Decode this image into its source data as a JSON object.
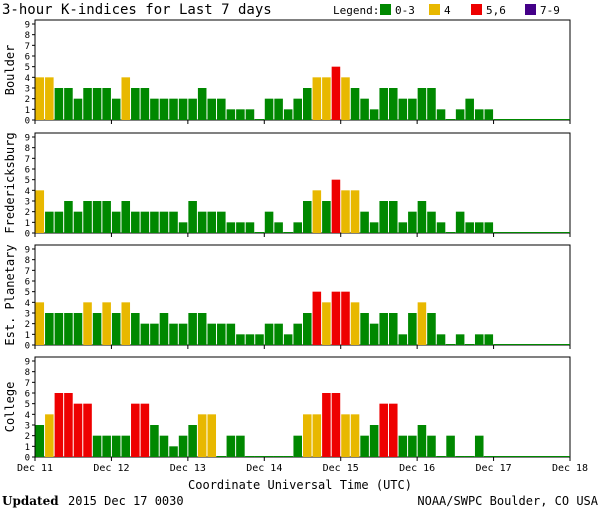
{
  "title": "3-hour K-indices for Last 7 days",
  "legend": {
    "label": "Legend:",
    "items": [
      {
        "label": "0-3",
        "color": "#008800"
      },
      {
        "label": "4",
        "color": "#e8b800"
      },
      {
        "label": "5,6",
        "color": "#ee0000"
      },
      {
        "label": "7-9",
        "color": "#440088"
      }
    ]
  },
  "footer": {
    "updated_label": "Updated",
    "updated_value": "2015 Dec 17 0030",
    "credit": "NOAA/SWPC Boulder, CO USA"
  },
  "chart_data": {
    "type": "bar",
    "xlabel": "Coordinate Universal Time (UTC)",
    "x_tick_labels": [
      "Dec 11",
      "Dec 12",
      "Dec 13",
      "Dec 14",
      "Dec 15",
      "Dec 16",
      "Dec 17",
      "Dec 18"
    ],
    "ylim": [
      0,
      9
    ],
    "y_ticks": [
      0,
      1,
      2,
      3,
      4,
      5,
      6,
      7,
      8,
      9
    ],
    "grid": false,
    "bins_per_day": 8,
    "color_thresholds": [
      {
        "range": "0-3",
        "color": "#008800"
      },
      {
        "range": "4",
        "color": "#e8b800"
      },
      {
        "range": "5,6",
        "color": "#ee0000"
      },
      {
        "range": "7-9",
        "color": "#440088"
      }
    ],
    "panels": [
      {
        "name": "Boulder",
        "values": [
          4,
          4,
          3,
          3,
          2,
          3,
          3,
          3,
          2,
          4,
          3,
          3,
          2,
          2,
          2,
          2,
          2,
          3,
          2,
          2,
          1,
          1,
          1,
          0,
          2,
          2,
          1,
          2,
          3,
          4,
          4,
          5,
          4,
          3,
          2,
          1,
          3,
          3,
          2,
          2,
          3,
          3,
          1,
          0,
          1,
          2,
          1,
          1
        ]
      },
      {
        "name": "Fredericksburg",
        "values": [
          4,
          2,
          2,
          3,
          2,
          3,
          3,
          3,
          2,
          3,
          2,
          2,
          2,
          2,
          2,
          1,
          3,
          2,
          2,
          2,
          1,
          1,
          1,
          0,
          2,
          1,
          0,
          1,
          3,
          4,
          3,
          5,
          4,
          4,
          2,
          1,
          3,
          3,
          1,
          2,
          3,
          2,
          1,
          0,
          2,
          1,
          1,
          1
        ]
      },
      {
        "name": "Est. Planetary",
        "values": [
          4,
          3,
          3,
          3,
          3,
          4,
          3,
          4,
          3,
          4,
          3,
          2,
          2,
          3,
          2,
          2,
          3,
          3,
          2,
          2,
          2,
          1,
          1,
          1,
          2,
          2,
          1,
          2,
          3,
          5,
          4,
          5,
          5,
          4,
          3,
          2,
          3,
          3,
          1,
          3,
          4,
          3,
          1,
          0,
          1,
          0,
          1,
          1
        ]
      },
      {
        "name": "College",
        "values": [
          3,
          4,
          6,
          6,
          5,
          5,
          2,
          2,
          2,
          2,
          5,
          5,
          3,
          2,
          1,
          2,
          3,
          4,
          4,
          0,
          2,
          2,
          0,
          0,
          0,
          0,
          0,
          2,
          4,
          4,
          6,
          6,
          4,
          4,
          2,
          3,
          5,
          5,
          2,
          2,
          3,
          2,
          0,
          2,
          0,
          0,
          2,
          0
        ]
      }
    ]
  }
}
